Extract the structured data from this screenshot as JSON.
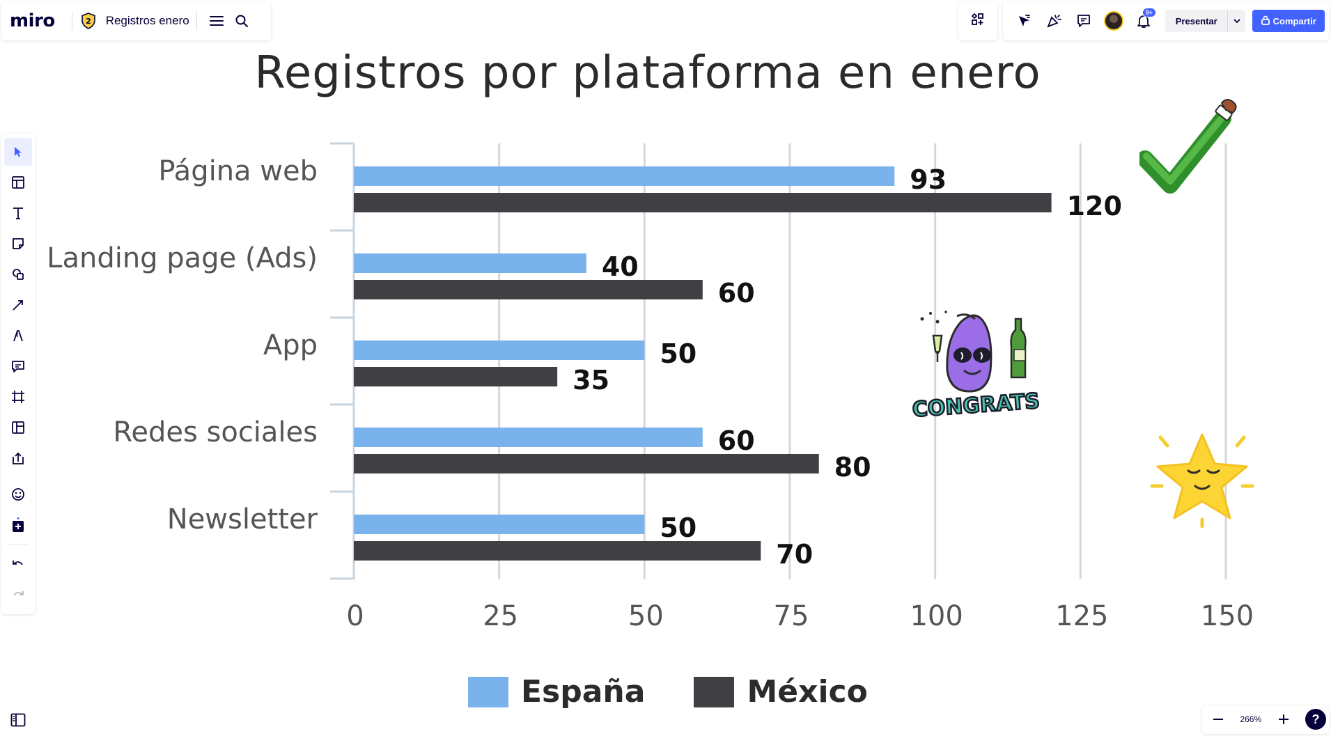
{
  "app": {
    "logo": "miro",
    "board_title": "Registros enero",
    "notification_count": "9+",
    "present_label": "Presentar",
    "share_label": "Compartir",
    "zoom_level": "266%",
    "help_label": "?"
  },
  "toolbar": {
    "tools": [
      "select-tool",
      "templates-tool",
      "text-tool",
      "sticky-note-tool",
      "shapes-tool",
      "connection-line-tool",
      "pen-tool",
      "comment-tool",
      "frame-tool",
      "kanban-tool",
      "upload-tool"
    ],
    "extras": [
      "emoji-tool",
      "apps-tool"
    ],
    "history": [
      "undo",
      "redo"
    ]
  },
  "colors": {
    "espana": "#7ab3ec",
    "mexico": "#3f3f44",
    "accent": "#4262ff"
  },
  "chart_data": {
    "type": "bar",
    "orientation": "horizontal",
    "title": "Registros por plataforma en enero",
    "categories": [
      "Página web",
      "Landing page (Ads)",
      "App",
      "Redes sociales",
      "Newsletter"
    ],
    "series": [
      {
        "name": "España",
        "values": [
          93,
          40,
          50,
          60,
          50
        ]
      },
      {
        "name": "México",
        "values": [
          120,
          60,
          35,
          80,
          70
        ]
      }
    ],
    "xlim": [
      0,
      150
    ],
    "xticks": [
      0,
      25,
      50,
      75,
      100,
      125,
      150
    ],
    "grid": true,
    "legend": "bottom",
    "data_labels": true
  },
  "stickers": {
    "congrats_text": "CONGRATS"
  }
}
